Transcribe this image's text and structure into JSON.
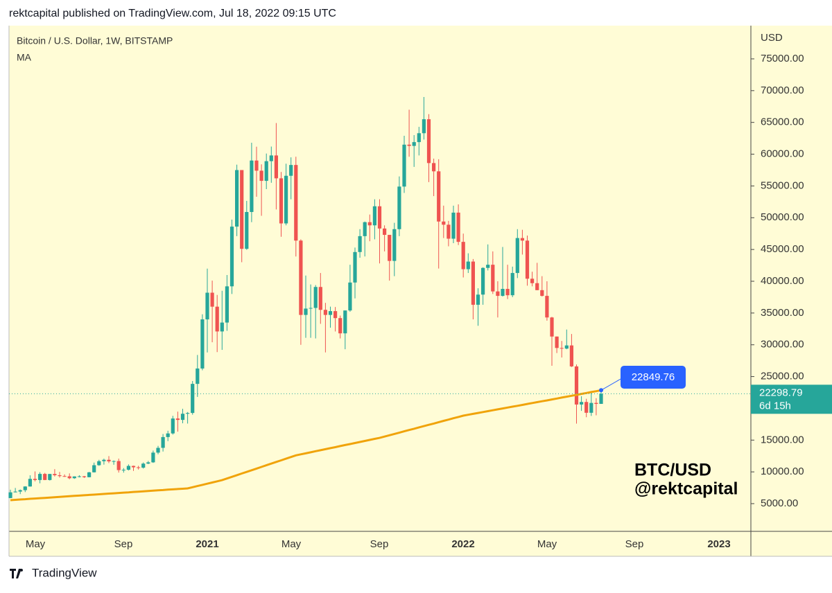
{
  "header": "rektcapital published on TradingView.com, Jul 18, 2022 09:15 UTC",
  "footer": "TradingView",
  "chart_data": {
    "type": "candlestick",
    "title": "Bitcoin / U.S. Dollar, 1W, BITSTAMP",
    "indicator": "MA",
    "y_axis_label": "USD",
    "up_color": "#26a69a",
    "down_color": "#ef5350",
    "ma_color": "#f0a30a",
    "background": "#fffcd6",
    "annotations": [
      "BTC/USD",
      "@rektcapital"
    ],
    "ylim": [
      640,
      80230
    ],
    "yticks": [
      {
        "value": 5000,
        "label": "5000.00"
      },
      {
        "value": 10000,
        "label": "10000.00"
      },
      {
        "value": 15000,
        "label": "15000.00"
      },
      {
        "value": 25000,
        "label": "25000.00"
      },
      {
        "value": 30000,
        "label": "30000.00"
      },
      {
        "value": 35000,
        "label": "35000.00"
      },
      {
        "value": 40000,
        "label": "40000.00"
      },
      {
        "value": 45000,
        "label": "45000.00"
      },
      {
        "value": 50000,
        "label": "50000.00"
      },
      {
        "value": 55000,
        "label": "55000.00"
      },
      {
        "value": 60000,
        "label": "60000.00"
      },
      {
        "value": 65000,
        "label": "65000.00"
      },
      {
        "value": 70000,
        "label": "70000.00"
      },
      {
        "value": 75000,
        "label": "75000.00"
      }
    ],
    "xticks": [
      "May",
      "Sep",
      "2021",
      "May",
      "Sep",
      "2022",
      "May",
      "Sep",
      "2023"
    ],
    "last_price": 22298.79,
    "last_price_label": "22298.79",
    "countdown": "6d 15h",
    "ma_label": "22849.76",
    "ohlc": [
      [
        5880,
        7190,
        5860,
        6780
      ],
      [
        6780,
        7470,
        6770,
        6900
      ],
      [
        6900,
        7230,
        6500,
        7120
      ],
      [
        7120,
        7740,
        6820,
        7700
      ],
      [
        7700,
        9460,
        7670,
        8900
      ],
      [
        8900,
        10070,
        8500,
        8720
      ],
      [
        8720,
        9950,
        8200,
        9680
      ],
      [
        9680,
        9840,
        8700,
        8720
      ],
      [
        8720,
        9690,
        8640,
        9670
      ],
      [
        9670,
        10430,
        9270,
        9470
      ],
      [
        9470,
        9990,
        9100,
        9340
      ],
      [
        9340,
        9600,
        9200,
        9300
      ],
      [
        9300,
        9760,
        8840,
        9000
      ],
      [
        9000,
        9300,
        8900,
        9280
      ],
      [
        9280,
        9470,
        9130,
        9300
      ],
      [
        9300,
        9360,
        9050,
        9160
      ],
      [
        9160,
        9990,
        9140,
        9930
      ],
      [
        9930,
        11460,
        9900,
        11050
      ],
      [
        11050,
        11900,
        10950,
        11680
      ],
      [
        11680,
        12080,
        11140,
        11900
      ],
      [
        11900,
        12480,
        11380,
        11650
      ],
      [
        11650,
        11800,
        11120,
        11700
      ],
      [
        11700,
        12090,
        9890,
        10280
      ],
      [
        10280,
        10600,
        9880,
        10330
      ],
      [
        10330,
        11180,
        10220,
        10940
      ],
      [
        10940,
        10990,
        10150,
        10720
      ],
      [
        10720,
        10950,
        10370,
        10660
      ],
      [
        10660,
        11480,
        10520,
        11300
      ],
      [
        11300,
        11720,
        11220,
        11500
      ],
      [
        11500,
        13350,
        11410,
        13030
      ],
      [
        13030,
        14090,
        12770,
        13780
      ],
      [
        13780,
        15960,
        13200,
        15480
      ],
      [
        15480,
        16470,
        14840,
        16050
      ],
      [
        16050,
        18820,
        15870,
        18400
      ],
      [
        18400,
        19480,
        16330,
        18180
      ],
      [
        18180,
        19920,
        17650,
        19150
      ],
      [
        19150,
        19420,
        17600,
        19270
      ],
      [
        19270,
        24300,
        19000,
        23850
      ],
      [
        23850,
        28400,
        21800,
        26270
      ],
      [
        26270,
        34800,
        25990,
        34000
      ],
      [
        34000,
        41990,
        28800,
        38200
      ],
      [
        38200,
        40100,
        30400,
        36000
      ],
      [
        36000,
        37850,
        28850,
        32100
      ],
      [
        32100,
        38500,
        29200,
        33500
      ],
      [
        33500,
        40980,
        32200,
        39200
      ],
      [
        39200,
        49700,
        37990,
        48600
      ],
      [
        48600,
        58350,
        47100,
        57500
      ],
      [
        57500,
        57500,
        43000,
        45100
      ],
      [
        45100,
        52650,
        44950,
        50900
      ],
      [
        50900,
        61800,
        49300,
        59000
      ],
      [
        59000,
        61180,
        53300,
        57400
      ],
      [
        57400,
        58400,
        50300,
        55800
      ],
      [
        55800,
        60100,
        54500,
        58900
      ],
      [
        58900,
        61200,
        55500,
        59800
      ],
      [
        59800,
        64900,
        51300,
        56200
      ],
      [
        56200,
        57200,
        47000,
        49100
      ],
      [
        49100,
        58500,
        48800,
        56600
      ],
      [
        56600,
        59500,
        52900,
        58300
      ],
      [
        58300,
        59600,
        43900,
        46400
      ],
      [
        46400,
        46600,
        30000,
        34700
      ],
      [
        34700,
        40900,
        31100,
        35700
      ],
      [
        35700,
        39500,
        31100,
        35800
      ],
      [
        35800,
        39400,
        31000,
        39100
      ],
      [
        39100,
        41300,
        33300,
        35500
      ],
      [
        35500,
        36600,
        28800,
        34700
      ],
      [
        34700,
        36000,
        32700,
        35300
      ],
      [
        35300,
        35950,
        32100,
        34200
      ],
      [
        34200,
        34600,
        31000,
        31800
      ],
      [
        31800,
        35400,
        29300,
        35400
      ],
      [
        35400,
        42600,
        35200,
        39800
      ],
      [
        39800,
        45300,
        37300,
        44600
      ],
      [
        44600,
        48200,
        43700,
        47100
      ],
      [
        47100,
        49400,
        43900,
        49300
      ],
      [
        49300,
        50500,
        46300,
        48800
      ],
      [
        48800,
        52900,
        46600,
        51800
      ],
      [
        51800,
        52900,
        42800,
        48300
      ],
      [
        48300,
        48800,
        44700,
        47300
      ],
      [
        47300,
        47300,
        40100,
        43200
      ],
      [
        43200,
        49200,
        40800,
        48200
      ],
      [
        48200,
        56500,
        47100,
        54900
      ],
      [
        54900,
        62900,
        53900,
        61500
      ],
      [
        61500,
        67000,
        59600,
        61300
      ],
      [
        61300,
        63000,
        58000,
        61900
      ],
      [
        61900,
        64300,
        59800,
        63300
      ],
      [
        63300,
        69000,
        62300,
        65500
      ],
      [
        65500,
        66300,
        55600,
        58600
      ],
      [
        58600,
        59300,
        53400,
        57300
      ],
      [
        57300,
        59200,
        42000,
        49400
      ],
      [
        49400,
        51900,
        46800,
        48900
      ],
      [
        48900,
        49500,
        45500,
        46700
      ],
      [
        46700,
        51900,
        46000,
        50800
      ],
      [
        50800,
        52100,
        45700,
        46200
      ],
      [
        46200,
        47500,
        40600,
        41900
      ],
      [
        41900,
        44400,
        41300,
        43100
      ],
      [
        43100,
        43500,
        34000,
        36300
      ],
      [
        36300,
        38900,
        33000,
        37900
      ],
      [
        37900,
        42200,
        36300,
        42100
      ],
      [
        42100,
        45800,
        41700,
        42600
      ],
      [
        42600,
        44700,
        38000,
        38400
      ],
      [
        38400,
        40000,
        34300,
        37700
      ],
      [
        37700,
        45400,
        37600,
        38800
      ],
      [
        38800,
        42600,
        37200,
        37800
      ],
      [
        37800,
        42300,
        37500,
        41300
      ],
      [
        41300,
        48200,
        40500,
        46800
      ],
      [
        46800,
        48100,
        44200,
        46400
      ],
      [
        46400,
        47200,
        39300,
        40400
      ],
      [
        40400,
        41500,
        39200,
        39700
      ],
      [
        39700,
        42900,
        38600,
        38600
      ],
      [
        38600,
        40800,
        37600,
        37700
      ],
      [
        37700,
        40000,
        33800,
        34300
      ],
      [
        34300,
        34400,
        26700,
        31300
      ],
      [
        31300,
        31300,
        28700,
        29500
      ],
      [
        29500,
        30600,
        28000,
        29400
      ],
      [
        29400,
        32400,
        29300,
        29900
      ],
      [
        29900,
        31700,
        26500,
        26600
      ],
      [
        26600,
        26900,
        17600,
        20600
      ],
      [
        20600,
        21900,
        19600,
        21000
      ],
      [
        21000,
        21500,
        18600,
        19300
      ],
      [
        19300,
        22500,
        18800,
        20850
      ],
      [
        20850,
        21600,
        18900,
        20700
      ],
      [
        20700,
        22990,
        20700,
        22298.79
      ]
    ],
    "ma": [
      5550,
      5600,
      5650,
      5700,
      5760,
      5810,
      5860,
      5910,
      5960,
      6010,
      6060,
      6110,
      6170,
      6220,
      6270,
      6320,
      6370,
      6420,
      6470,
      6530,
      6580,
      6630,
      6680,
      6730,
      6780,
      6840,
      6890,
      6940,
      6990,
      7040,
      7090,
      7140,
      7200,
      7250,
      7300,
      7350,
      7400,
      7590,
      7770,
      7960,
      8140,
      8330,
      8510,
      8700,
      8960,
      9220,
      9480,
      9740,
      10000,
      10260,
      10520,
      10780,
      11040,
      11300,
      11560,
      11820,
      12080,
      12340,
      12600,
      12760,
      12920,
      13080,
      13250,
      13410,
      13570,
      13730,
      13890,
      14060,
      14220,
      14380,
      14540,
      14700,
      14870,
      15030,
      15190,
      15350,
      15560,
      15760,
      15970,
      16170,
      16380,
      16590,
      16790,
      17000,
      17200,
      17410,
      17610,
      17820,
      18030,
      18230,
      18440,
      18640,
      18850,
      18990,
      19130,
      19270,
      19410,
      19560,
      19700,
      19840,
      19980,
      20120,
      20260,
      20400,
      20540,
      20690,
      20830,
      20970,
      21110,
      21250,
      21400,
      21540,
      21690,
      21830,
      21980,
      22120,
      22270,
      22410,
      22560,
      22700,
      22849.76
    ]
  }
}
